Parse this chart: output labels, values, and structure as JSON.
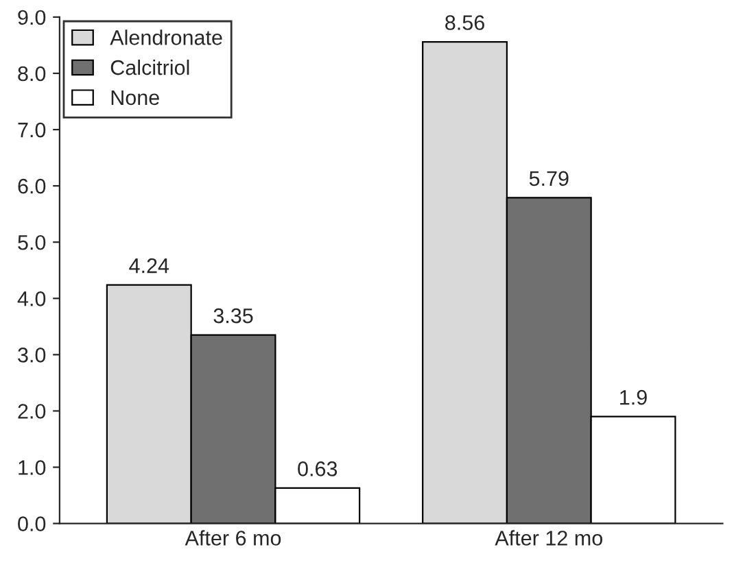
{
  "chart_data": {
    "type": "bar",
    "categories": [
      "After 6 mo",
      "After 12 mo"
    ],
    "series": [
      {
        "name": "Alendronate",
        "color": "#d9d9d9",
        "values": [
          4.24,
          8.56
        ]
      },
      {
        "name": "Calcitriol",
        "color": "#707070",
        "values": [
          3.35,
          5.79
        ]
      },
      {
        "name": "None",
        "color": "#ffffff",
        "values": [
          0.63,
          1.9
        ]
      }
    ],
    "ylim": [
      0,
      9
    ],
    "yticks": [
      {
        "value": 0,
        "label": "0.0"
      },
      {
        "value": 1,
        "label": "1.0"
      },
      {
        "value": 2,
        "label": "2.0"
      },
      {
        "value": 3,
        "label": "3.0"
      },
      {
        "value": 4,
        "label": "4.0"
      },
      {
        "value": 5,
        "label": "5.0"
      },
      {
        "value": 6,
        "label": "6.0"
      },
      {
        "value": 7,
        "label": "7.0"
      },
      {
        "value": 8,
        "label": "8.0"
      },
      {
        "value": 9,
        "label": "9.0"
      }
    ],
    "data_labels": true,
    "grid": false,
    "legend": "top left"
  }
}
